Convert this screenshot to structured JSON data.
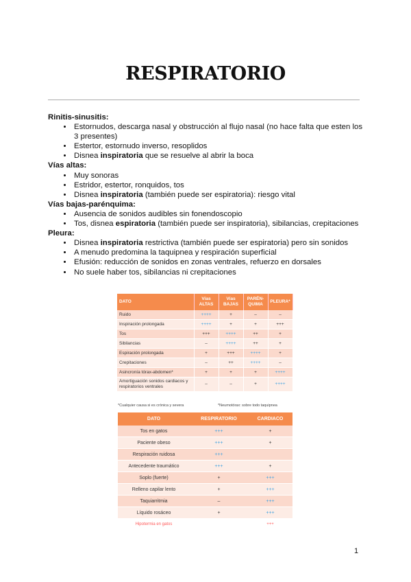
{
  "title": "RESPIRATORIO",
  "sections": [
    {
      "heading": "Rinitis-sinusitis:",
      "items": [
        [
          "Estornudos, descarga nasal y obstrucción al flujo nasal (no hace falta que esten los 3 presentes)",
          "",
          ""
        ],
        [
          "Estertor, estornudo inverso, resoplidos",
          "",
          ""
        ],
        [
          "Disnea ",
          "inspiratoria",
          " que se resuelve al abrir la boca"
        ]
      ]
    },
    {
      "heading": "Vías altas:",
      "items": [
        [
          "Muy sonoras",
          "",
          ""
        ],
        [
          "Estridor, estertor, ronquidos, tos",
          "",
          ""
        ],
        [
          "Disnea ",
          "inspiratoria",
          " (también puede ser espiratoria): riesgo vital"
        ]
      ]
    },
    {
      "heading": "Vías bajas-parénquima:",
      "items": [
        [
          "Ausencia de sonidos audibles sin fonendoscopio",
          "",
          ""
        ],
        [
          "Tos, disnea ",
          "espiratoria",
          " (también puede ser inspiratoria), sibilancias, crepitaciones"
        ]
      ]
    },
    {
      "heading": "Pleura:",
      "items": [
        [
          "Disnea ",
          "inspiratoria",
          " restrictiva (también puede ser espiratoria) pero sin sonidos"
        ],
        [
          "A menudo predomina la taquipnea y respiración superficial",
          "",
          ""
        ],
        [
          "Efusión: reducción de sonidos en zonas ventrales, refuerzo en dorsales",
          "",
          ""
        ],
        [
          "No suele haber tos, sibilancias ni crepitaciones",
          "",
          ""
        ]
      ]
    }
  ],
  "table1": {
    "headers": [
      "DATO",
      "Vías ALTAS",
      "Vías BAJAS",
      "PARÉN-QUIMA",
      "PLEURA*"
    ],
    "rows": [
      [
        "Ruido",
        "++++",
        "+",
        "–",
        "–"
      ],
      [
        "Inspiración prolongada",
        "++++",
        "+",
        "+",
        "+++"
      ],
      [
        "Tos",
        "+++",
        "++++",
        "++",
        "+"
      ],
      [
        "Sibilancias",
        "–",
        "++++",
        "++",
        "+"
      ],
      [
        "Espiración prolongada",
        "+",
        "+++",
        "++++",
        "+"
      ],
      [
        "Crepitaciones",
        "–",
        "++",
        "++++",
        "–"
      ],
      [
        "Asincronía tórax-abdomen*",
        "+",
        "+",
        "+",
        "++++"
      ],
      [
        "Amortiguación sonidos cardiacos y respiratorios ventrales",
        "–",
        "–",
        "+",
        "++++"
      ]
    ],
    "blue_cells": [
      [
        0,
        1
      ],
      [
        1,
        1
      ],
      [
        2,
        2
      ],
      [
        3,
        2
      ],
      [
        4,
        3
      ],
      [
        5,
        3
      ],
      [
        6,
        4
      ],
      [
        7,
        4
      ]
    ],
    "footnote_left": "*Cualquier causa si es crónica y severa",
    "footnote_right": "*Neumotórax: sobre todo taquipnea"
  },
  "table2": {
    "headers": [
      "DATO",
      "RESPIRATORIO",
      "CARDIACO"
    ],
    "rows": [
      [
        "Tos en gatos",
        "+++",
        "+"
      ],
      [
        "Paciente obeso",
        "+++",
        "+"
      ],
      [
        "Respiración ruidosa",
        "+++",
        ""
      ],
      [
        "Antecedente traumático",
        "+++",
        "+"
      ],
      [
        "Soplo (fuerte)",
        "+",
        "+++"
      ],
      [
        "Relleno capilar lento",
        "+",
        "+++"
      ],
      [
        "Taquiarritmia",
        "–",
        "+++"
      ],
      [
        "Líquido rosáceo",
        "+",
        "+++"
      ],
      [
        "Hipotermia en gatos",
        "",
        "+++"
      ]
    ],
    "blue_cells": [
      [
        0,
        1
      ],
      [
        1,
        1
      ],
      [
        2,
        1
      ],
      [
        3,
        1
      ],
      [
        4,
        2
      ],
      [
        5,
        2
      ],
      [
        6,
        2
      ],
      [
        7,
        2
      ]
    ]
  },
  "page_number": "1"
}
